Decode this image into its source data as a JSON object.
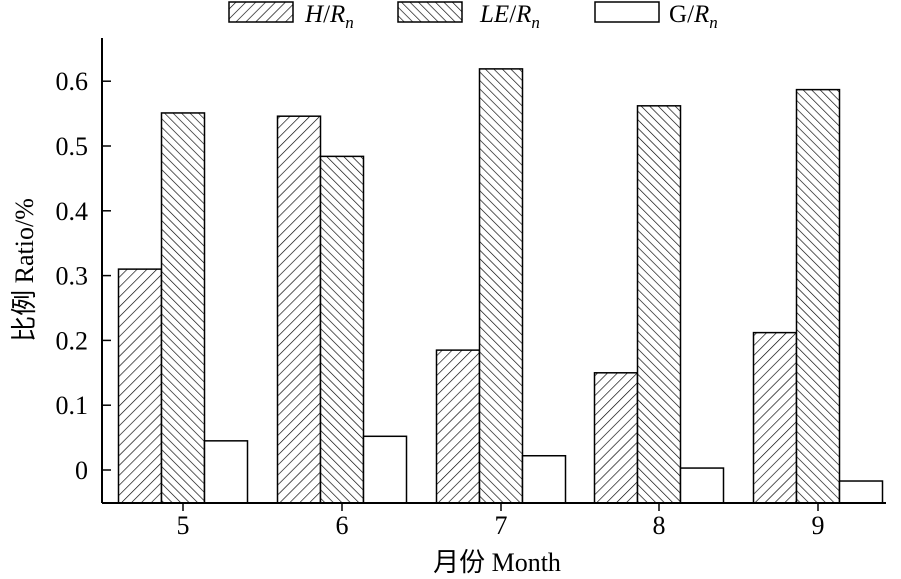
{
  "chart_data": {
    "type": "bar",
    "categories": [
      "5",
      "6",
      "7",
      "8",
      "9"
    ],
    "series": [
      {
        "name": "H/Rn",
        "name_main": "H",
        "name_sub": "n",
        "pattern": "forward-hatch",
        "values": [
          0.31,
          0.546,
          0.185,
          0.15,
          0.212
        ]
      },
      {
        "name": "LE/Rn",
        "name_main": "LE",
        "name_sub": "n",
        "pattern": "back-hatch",
        "values": [
          0.551,
          0.484,
          0.619,
          0.562,
          0.587
        ]
      },
      {
        "name": "G/Rn",
        "name_main": "G",
        "name_sub": "n",
        "pattern": "none",
        "values": [
          0.045,
          0.052,
          0.022,
          0.003,
          -0.017
        ]
      }
    ],
    "title": "",
    "xlabel": "月份 Month",
    "ylabel": "比例 Ratio/%",
    "ylim": [
      -0.05,
      0.67
    ],
    "yticks": [
      "0",
      "0.1",
      "0.2",
      "0.3",
      "0.4",
      "0.5",
      "0.6"
    ],
    "ytick_values": [
      0,
      0.1,
      0.2,
      0.3,
      0.4,
      0.5,
      0.6
    ],
    "grid": false,
    "legend_position": "top-center"
  },
  "colors": {
    "ink": "#000000",
    "fill": "#ffffff"
  }
}
